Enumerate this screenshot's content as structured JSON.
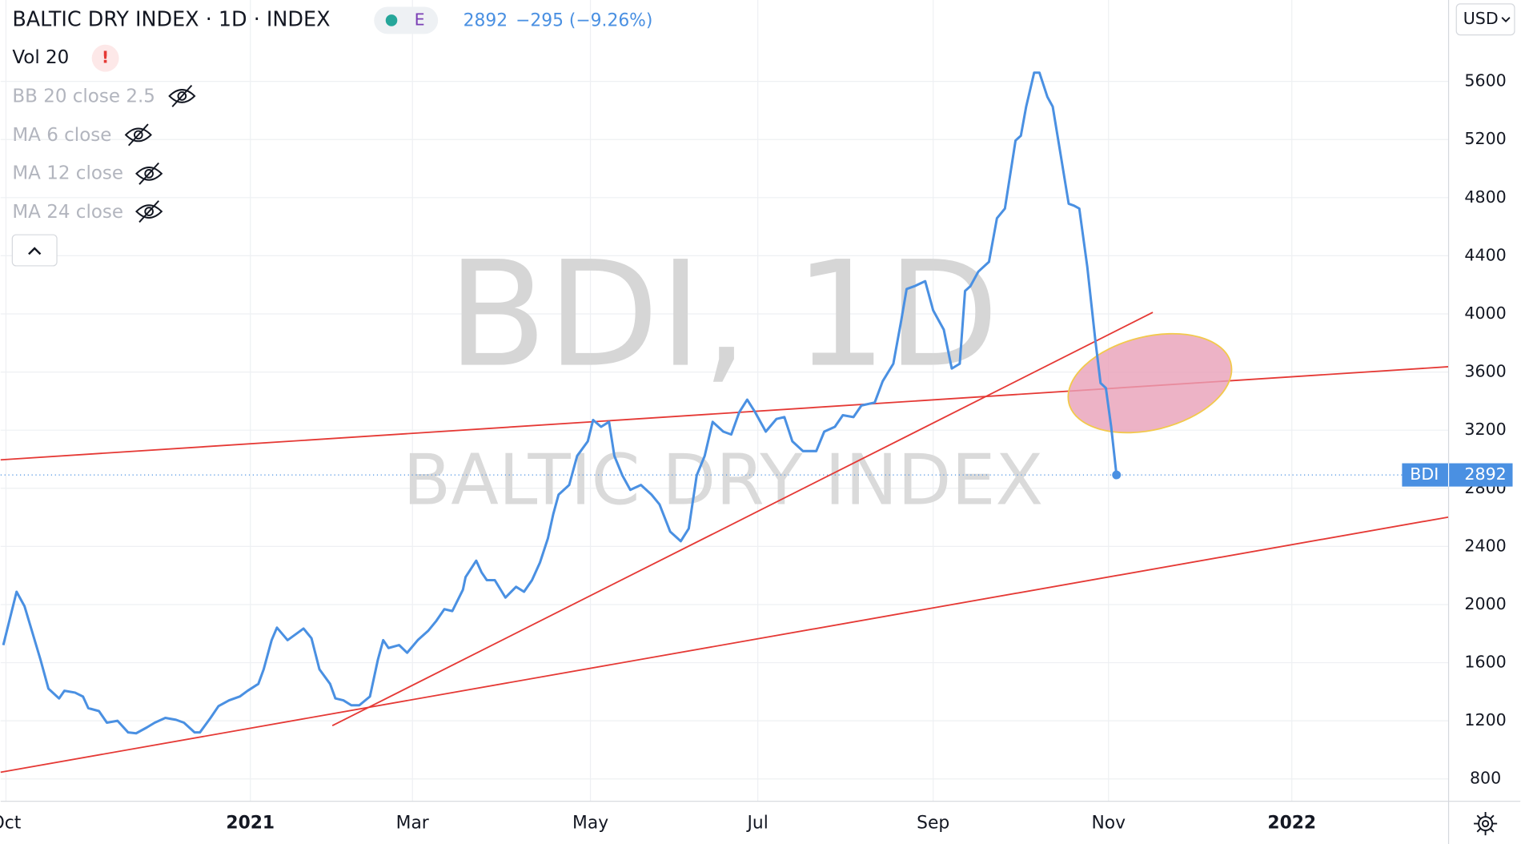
{
  "chart_data": {
    "type": "line",
    "title": "BALTIC DRY INDEX · 1D · INDEX",
    "exchange_badge": "E",
    "change": "−295 (−9.26%)",
    "indicators": [
      "Vol 20",
      "BB 20 close 2.5",
      "MA 6 close",
      "MA 12 close",
      "MA 24 close"
    ],
    "alert": "!",
    "currency": "USD",
    "watermark": "BDI, 1D",
    "watermark_subtitle": "BALTIC DRY INDEX",
    "grid": true,
    "xlim": [
      -2,
      543
    ],
    "xticks": [
      {
        "value": 0,
        "label": "Oct"
      },
      {
        "value": 92,
        "label": "2021"
      },
      {
        "value": 153,
        "label": "Mar"
      },
      {
        "value": 220,
        "label": "May"
      },
      {
        "value": 283,
        "label": "Jul"
      },
      {
        "value": 349,
        "label": "Sep"
      },
      {
        "value": 415,
        "label": "Nov"
      },
      {
        "value": 484,
        "label": "2022"
      }
    ],
    "ylim": [
      646,
      6160
    ],
    "yticks": [
      800,
      1200,
      1600,
      2000,
      2400,
      2800,
      3200,
      3600,
      4000,
      4400,
      4800,
      5200,
      5600
    ],
    "series": [
      {
        "name": "BDI",
        "color": "#4a90e2",
        "x": [
          -1,
          4,
          7,
          13,
          16,
          20,
          22,
          26,
          29,
          31,
          35,
          38,
          42,
          46,
          49,
          53,
          56,
          60,
          64,
          67,
          71,
          73,
          77,
          80,
          84,
          88,
          91,
          95,
          97,
          100,
          102,
          106,
          110,
          112,
          115,
          118,
          122,
          124,
          127,
          130,
          133,
          137,
          140,
          142,
          144,
          148,
          151,
          155,
          159,
          162,
          165,
          168,
          172,
          173,
          177,
          179,
          181,
          184,
          188,
          192,
          195,
          198,
          201,
          204,
          206,
          208,
          212,
          215,
          219,
          221,
          224,
          227,
          229,
          232,
          235,
          239,
          243,
          246,
          250,
          254,
          257,
          260,
          263,
          266,
          270,
          273,
          276,
          279,
          282,
          286,
          290,
          293,
          296,
          300,
          305,
          308,
          312,
          315,
          319,
          322,
          327,
          330,
          334,
          337,
          339,
          342,
          346,
          349,
          353,
          356,
          359,
          361,
          363,
          366,
          370,
          373,
          376,
          380,
          382,
          384,
          387,
          389,
          392,
          394,
          397,
          400,
          402,
          404,
          407,
          410,
          412,
          414,
          416,
          418
        ],
        "values": [
          1721,
          2088,
          1988,
          1621,
          1421,
          1354,
          1407,
          1394,
          1367,
          1287,
          1267,
          1187,
          1200,
          1120,
          1114,
          1154,
          1187,
          1220,
          1207,
          1187,
          1120,
          1120,
          1220,
          1301,
          1341,
          1367,
          1407,
          1454,
          1554,
          1755,
          1841,
          1755,
          1808,
          1835,
          1768,
          1554,
          1454,
          1354,
          1341,
          1307,
          1307,
          1367,
          1621,
          1755,
          1701,
          1721,
          1668,
          1755,
          1821,
          1888,
          1968,
          1955,
          2102,
          2189,
          2302,
          2222,
          2168,
          2168,
          2048,
          2122,
          2088,
          2168,
          2289,
          2456,
          2622,
          2756,
          2823,
          3023,
          3123,
          3270,
          3223,
          3257,
          3023,
          2889,
          2789,
          2823,
          2756,
          2689,
          2502,
          2436,
          2523,
          2889,
          3023,
          3257,
          3190,
          3170,
          3323,
          3410,
          3323,
          3190,
          3277,
          3290,
          3123,
          3056,
          3056,
          3190,
          3223,
          3303,
          3290,
          3370,
          3390,
          3537,
          3657,
          3957,
          4171,
          4191,
          4225,
          4024,
          3891,
          3624,
          3657,
          4158,
          4191,
          4291,
          4358,
          4658,
          4725,
          5193,
          5226,
          5426,
          5660,
          5660,
          5493,
          5426,
          5093,
          4758,
          4745,
          4725,
          4325,
          3824,
          3524,
          3490,
          3223,
          2892
        ]
      }
    ]
  }
}
